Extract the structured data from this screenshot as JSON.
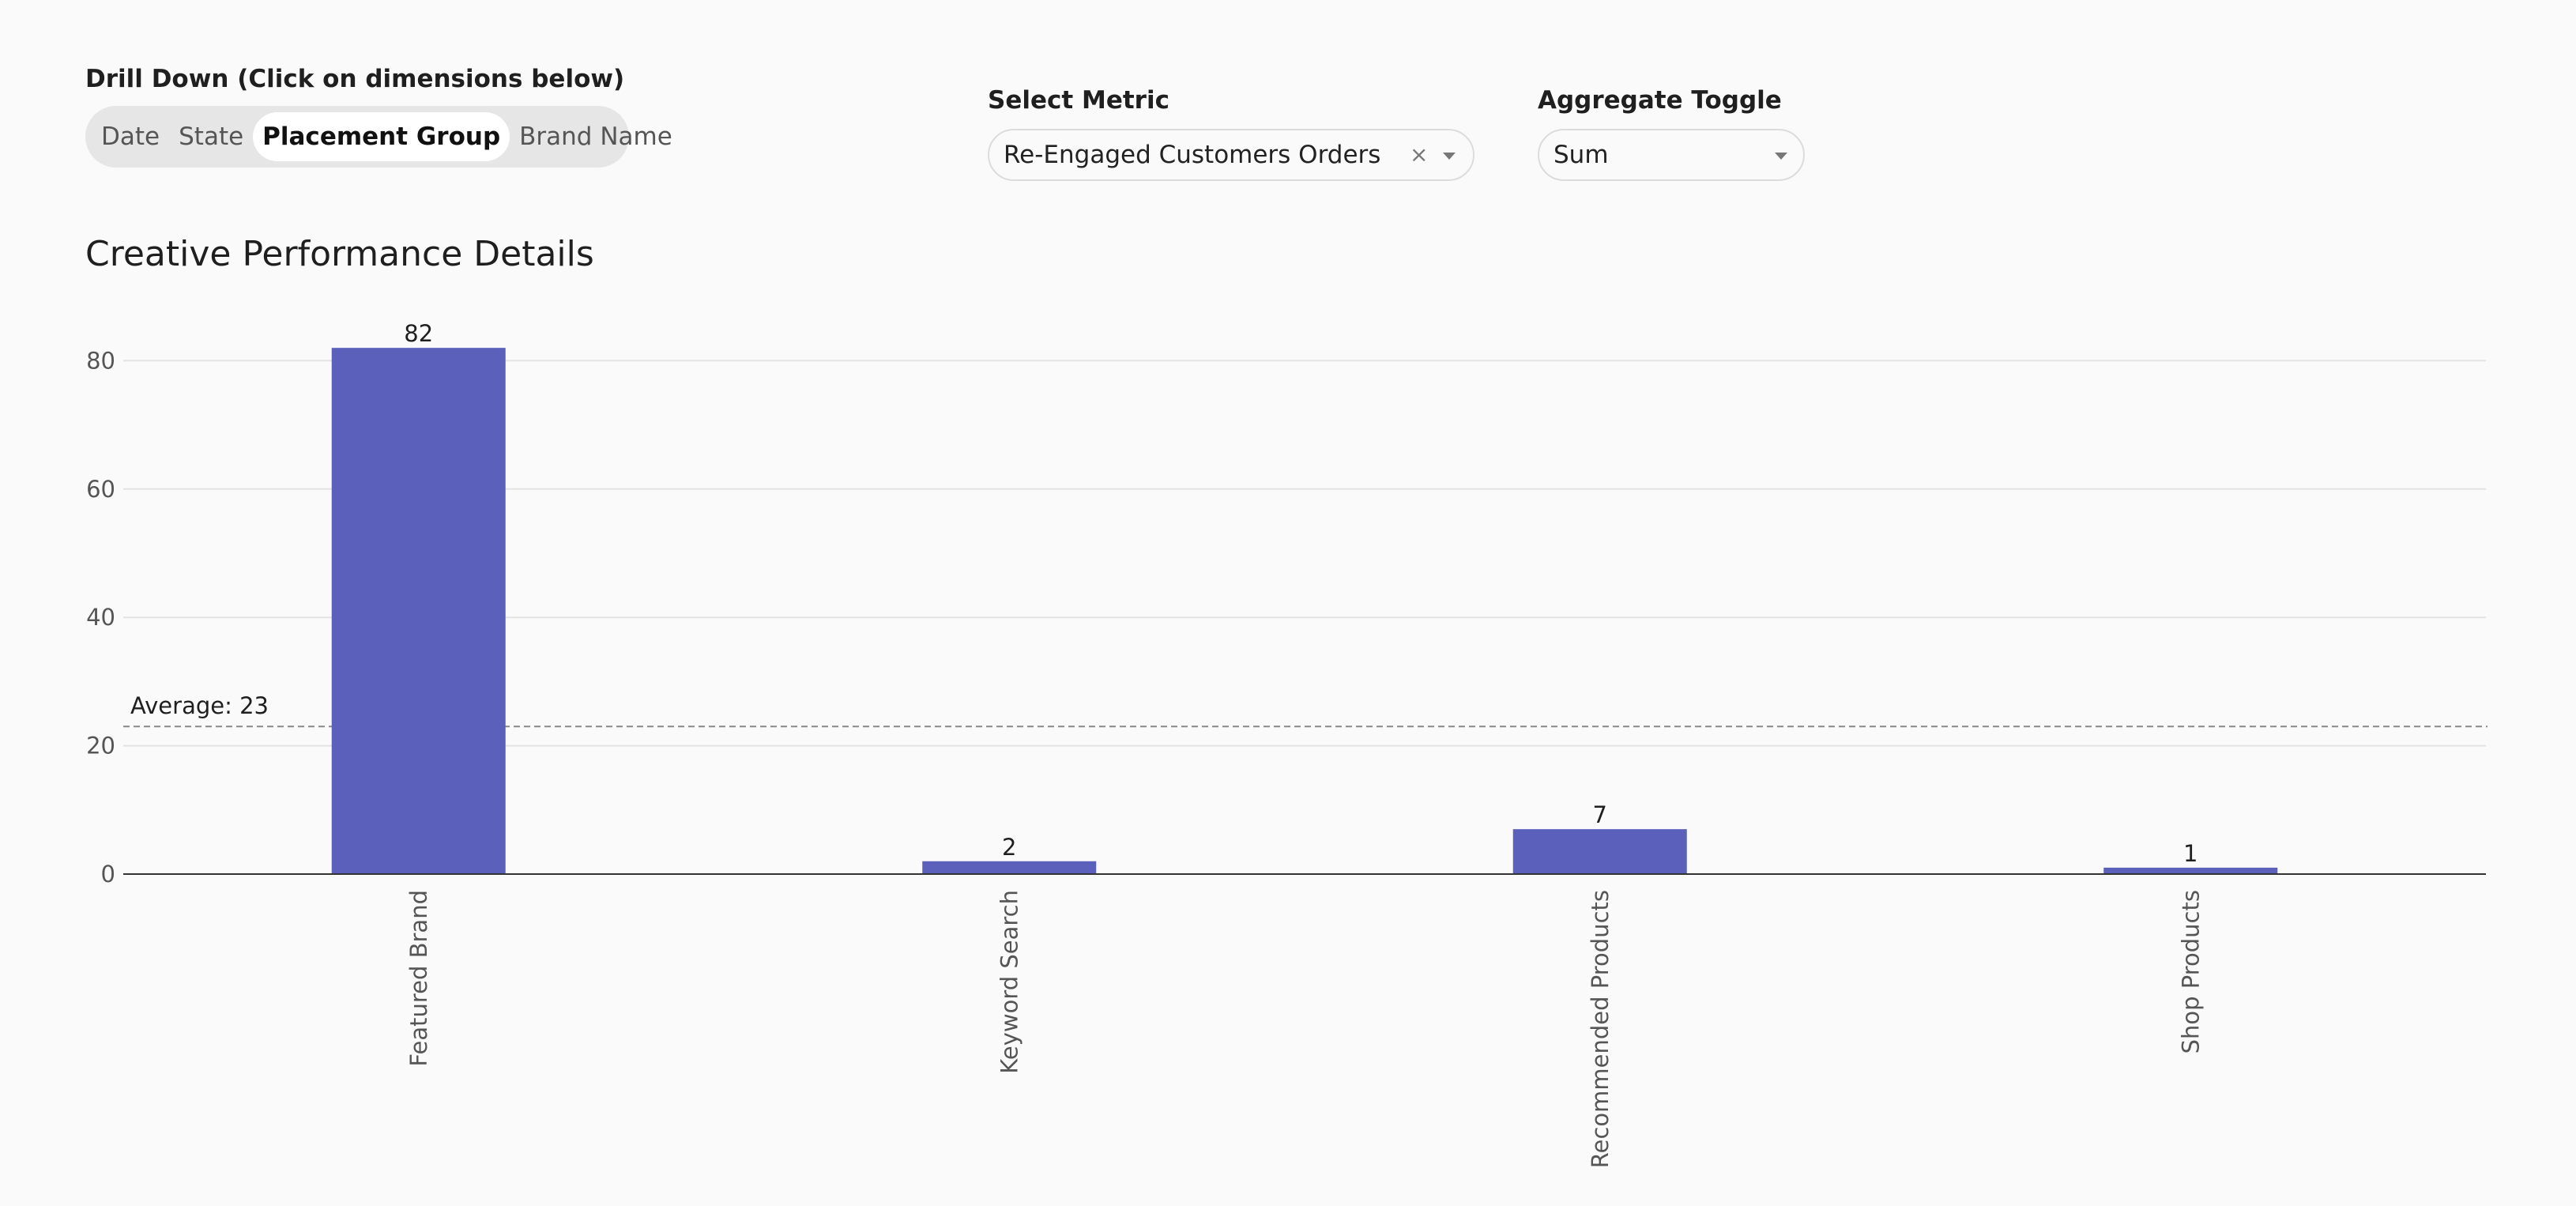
{
  "drill_down": {
    "label": "Drill Down (Click on dimensions below)",
    "options": [
      "Date",
      "State",
      "Placement Group",
      "Brand Name"
    ],
    "active_index": 2
  },
  "metric_select": {
    "label": "Select Metric",
    "value": "Re-Engaged Customers Orders",
    "clear_glyph": "×"
  },
  "aggregate_select": {
    "label": "Aggregate Toggle",
    "value": "Sum"
  },
  "colors": {
    "bar": "#5b61bb",
    "grid": "#e3e3e3",
    "axis": "#333333",
    "average_line": "#888888"
  },
  "chart_data": {
    "type": "bar",
    "title": "Creative Performance Details",
    "categories": [
      "Featured Brand",
      "Keyword Search",
      "Recommended Products",
      "Shop Products"
    ],
    "values": [
      82,
      2,
      7,
      1
    ],
    "data_labels": [
      "82",
      "2",
      "7",
      "1"
    ],
    "ylim": [
      0,
      80
    ],
    "yticks": [
      0,
      20,
      40,
      60,
      80
    ],
    "grid": true,
    "average": {
      "value": 23,
      "label": "Average: 23"
    }
  }
}
